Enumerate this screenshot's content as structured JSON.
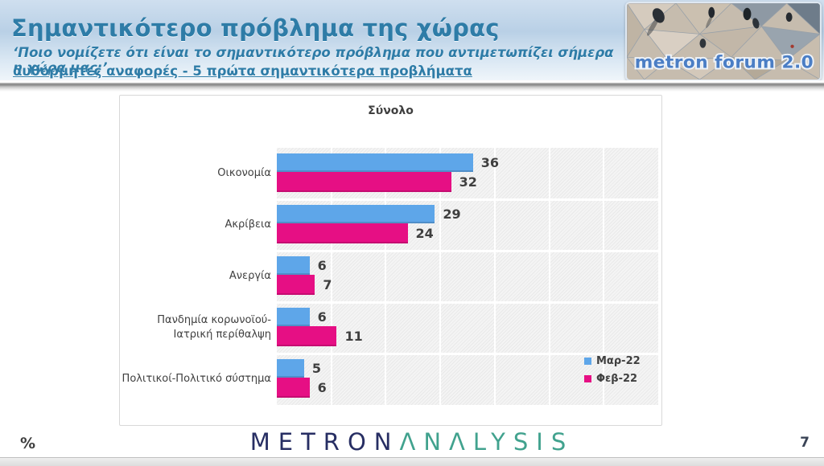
{
  "header": {
    "title": "Σημαντικότερο πρόβλημα της χώρας",
    "subtitle_question": "‘Ποιο νομίζετε ότι  είναι το σημαντικότερο πρόβλημα που αντιμετωπίζει σήμερα η χώρα μας;’",
    "subtitle_note": "αυθόρμητες αναφορές - 5 πρώτα σημαντικότερα προβλήματα",
    "accent_color": "#2E7CA7",
    "photo_logo_text": "metron forum 2.0",
    "photo_logo_color": "#4B7EC5"
  },
  "chart_data": {
    "type": "bar",
    "orientation": "horizontal",
    "title": "Σύνολο",
    "categories": [
      "Οικονομία",
      "Ακρίβεια",
      "Ανεργία",
      "Πανδημία κορωνοϊού-Ιατρική περίθαλψη",
      "Πολιτικοί-Πολιτικό σύστημα"
    ],
    "series": [
      {
        "name": "Μαρ-22",
        "color": "#5ea6e9",
        "values": [
          36,
          29,
          6,
          6,
          5
        ]
      },
      {
        "name": "Φεβ-22",
        "color": "#e60f84",
        "values": [
          32,
          24,
          7,
          11,
          6
        ]
      }
    ],
    "xlim": [
      0,
      70
    ],
    "gridline_step": 10,
    "grid": true,
    "legend_position": "inside-bottom-right",
    "value_labels": true
  },
  "footer": {
    "percent_label": "%",
    "brand_metron": "METRON",
    "brand_analysis": "ΛΝΛLYSIS",
    "page_number": "7"
  }
}
